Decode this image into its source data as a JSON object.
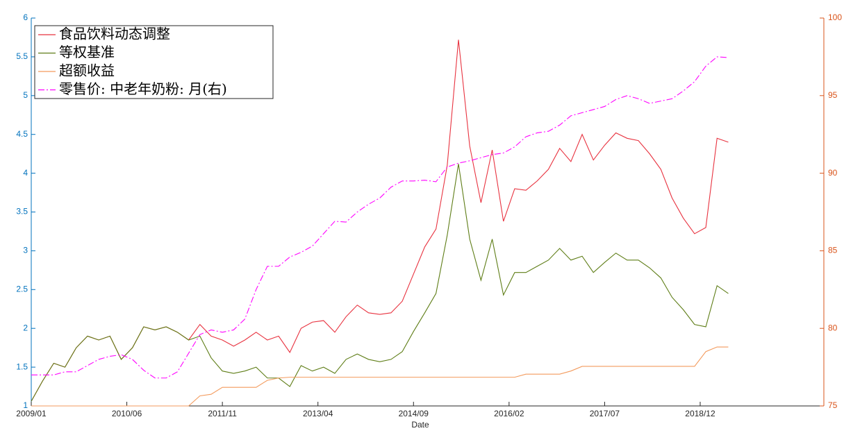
{
  "chart_data": {
    "type": "line",
    "xlabel": "Date",
    "x": [
      "2009/01",
      "2009/03",
      "2009/05",
      "2009/07",
      "2009/09",
      "2009/11",
      "2010/01",
      "2010/03",
      "2010/05",
      "2010/07",
      "2010/09",
      "2010/11",
      "2011/01",
      "2011/03",
      "2011/05",
      "2011/07",
      "2011/09",
      "2011/11",
      "2012/01",
      "2012/03",
      "2012/05",
      "2012/07",
      "2012/09",
      "2012/11",
      "2013/01",
      "2013/03",
      "2013/05",
      "2013/07",
      "2013/09",
      "2013/11",
      "2014/01",
      "2014/03",
      "2014/05",
      "2014/07",
      "2014/09",
      "2014/11",
      "2015/01",
      "2015/03",
      "2015/05",
      "2015/07",
      "2015/09",
      "2015/11",
      "2016/01",
      "2016/03",
      "2016/05",
      "2016/07",
      "2016/09",
      "2016/11",
      "2017/01",
      "2017/03",
      "2017/05",
      "2017/07",
      "2017/09",
      "2017/11",
      "2018/01",
      "2018/03",
      "2018/05",
      "2018/07",
      "2018/09",
      "2018/11",
      "2019/01",
      "2019/03",
      "2019/05"
    ],
    "xlim": [
      "2009/01",
      "2020/10"
    ],
    "xticks": [
      "2009/01",
      "2010/06",
      "2011/11",
      "2013/04",
      "2014/09",
      "2016/02",
      "2017/07",
      "2018/12"
    ],
    "ylim": [
      1,
      6
    ],
    "yticks": [
      1,
      1.5,
      2,
      2.5,
      3,
      3.5,
      4,
      4.5,
      5,
      5.5,
      6
    ],
    "y2lim": [
      75,
      100
    ],
    "y2ticks": [
      75,
      80,
      85,
      90,
      95,
      100
    ],
    "y_axis_color": "#0072bd",
    "y2_axis_color": "#d95319",
    "grid": false,
    "legend": "upper left",
    "series": [
      {
        "name": "食品饮料动态调整",
        "color": "#e8323f",
        "line_style": "solid",
        "values": [
          1.06,
          1.32,
          1.55,
          1.5,
          1.75,
          1.9,
          1.85,
          1.9,
          1.6,
          1.75,
          2.02,
          1.98,
          2.02,
          1.95,
          1.85,
          2.05,
          1.9,
          1.85,
          1.77,
          1.85,
          1.95,
          1.85,
          1.9,
          1.69,
          2.0,
          2.08,
          2.1,
          1.95,
          2.15,
          2.3,
          2.2,
          2.18,
          2.2,
          2.35,
          2.7,
          3.05,
          3.28,
          4.1,
          5.72,
          4.35,
          3.62,
          4.3,
          3.38,
          3.8,
          3.78,
          3.9,
          4.05,
          4.32,
          4.15,
          4.5,
          4.17,
          4.36,
          4.52,
          4.45,
          4.42,
          4.25,
          4.05,
          3.68,
          3.42,
          3.22,
          3.3,
          4.45,
          4.4
        ]
      },
      {
        "name": "等权基准",
        "color": "#5e7d16",
        "line_style": "solid",
        "values": [
          1.06,
          1.32,
          1.55,
          1.5,
          1.75,
          1.9,
          1.85,
          1.9,
          1.6,
          1.75,
          2.02,
          1.98,
          2.02,
          1.95,
          1.85,
          1.9,
          1.62,
          1.45,
          1.42,
          1.45,
          1.5,
          1.36,
          1.36,
          1.25,
          1.52,
          1.45,
          1.5,
          1.42,
          1.6,
          1.67,
          1.6,
          1.57,
          1.6,
          1.7,
          1.96,
          2.2,
          2.45,
          3.2,
          4.12,
          3.15,
          2.62,
          3.15,
          2.43,
          2.72,
          2.72,
          2.8,
          2.88,
          3.03,
          2.88,
          2.93,
          2.72,
          2.85,
          2.97,
          2.88,
          2.88,
          2.78,
          2.65,
          2.4,
          2.24,
          2.05,
          2.02,
          2.55,
          2.45
        ]
      },
      {
        "name": "超额收益",
        "color": "#f39a5c",
        "line_style": "solid",
        "values": [
          1,
          1,
          1,
          1,
          1,
          1,
          1,
          1,
          1,
          1,
          1,
          1,
          1,
          1,
          1,
          1.13,
          1.15,
          1.24,
          1.24,
          1.24,
          1.24,
          1.33,
          1.36,
          1.37,
          1.37,
          1.37,
          1.37,
          1.37,
          1.37,
          1.37,
          1.37,
          1.37,
          1.37,
          1.37,
          1.37,
          1.37,
          1.37,
          1.37,
          1.37,
          1.37,
          1.37,
          1.37,
          1.37,
          1.37,
          1.41,
          1.41,
          1.41,
          1.41,
          1.45,
          1.51,
          1.51,
          1.51,
          1.51,
          1.51,
          1.51,
          1.51,
          1.51,
          1.51,
          1.51,
          1.51,
          1.7,
          1.76,
          1.76
        ]
      },
      {
        "name": "零售价: 中老年奶粉: 月(右)",
        "color": "#ff00ff",
        "line_style": "dashdot",
        "axis": "y2",
        "values": [
          77.0,
          77.0,
          77.0,
          77.2,
          77.2,
          77.6,
          78.0,
          78.2,
          78.3,
          78.0,
          77.3,
          76.8,
          76.8,
          77.2,
          78.4,
          79.6,
          79.9,
          79.75,
          79.9,
          80.6,
          82.5,
          84.0,
          84.0,
          84.6,
          84.9,
          85.3,
          86.1,
          86.9,
          86.85,
          87.5,
          88.0,
          88.4,
          89.1,
          89.5,
          89.5,
          89.55,
          89.45,
          90.4,
          90.65,
          90.8,
          91.0,
          91.2,
          91.3,
          91.7,
          92.35,
          92.6,
          92.7,
          93.1,
          93.7,
          93.9,
          94.1,
          94.3,
          94.75,
          95.0,
          94.8,
          94.5,
          94.65,
          94.8,
          95.3,
          95.9,
          96.9,
          97.5,
          97.45
        ]
      }
    ]
  }
}
